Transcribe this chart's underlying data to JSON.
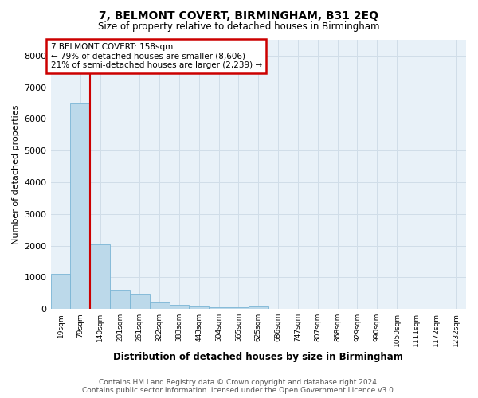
{
  "title": "7, BELMONT COVERT, BIRMINGHAM, B31 2EQ",
  "subtitle": "Size of property relative to detached houses in Birmingham",
  "xlabel": "Distribution of detached houses by size in Birmingham",
  "ylabel": "Number of detached properties",
  "footer_line1": "Contains HM Land Registry data © Crown copyright and database right 2024.",
  "footer_line2": "Contains public sector information licensed under the Open Government Licence v3.0.",
  "annotation_title": "7 BELMONT COVERT: 158sqm",
  "annotation_line1": "← 79% of detached houses are smaller (8,606)",
  "annotation_line2": "21% of semi-detached houses are larger (2,239) →",
  "bar_labels": [
    "19sqm",
    "79sqm",
    "140sqm",
    "201sqm",
    "261sqm",
    "322sqm",
    "383sqm",
    "443sqm",
    "504sqm",
    "565sqm",
    "625sqm",
    "686sqm",
    "747sqm",
    "807sqm",
    "868sqm",
    "929sqm",
    "990sqm",
    "1050sqm",
    "1111sqm",
    "1172sqm",
    "1232sqm"
  ],
  "bar_values": [
    1100,
    6500,
    2050,
    600,
    480,
    200,
    130,
    80,
    60,
    55,
    65,
    0,
    0,
    0,
    0,
    0,
    0,
    0,
    0,
    0,
    0
  ],
  "bar_color": "#bcd9ea",
  "bar_edge_color": "#7ab5d5",
  "vline_color": "#cc0000",
  "vline_x_index": 1.5,
  "annotation_box_color": "#cc0000",
  "grid_color": "#d0dde8",
  "background_color": "#e8f1f8",
  "ylim": [
    0,
    8500
  ],
  "yticks": [
    0,
    1000,
    2000,
    3000,
    4000,
    5000,
    6000,
    7000,
    8000
  ]
}
